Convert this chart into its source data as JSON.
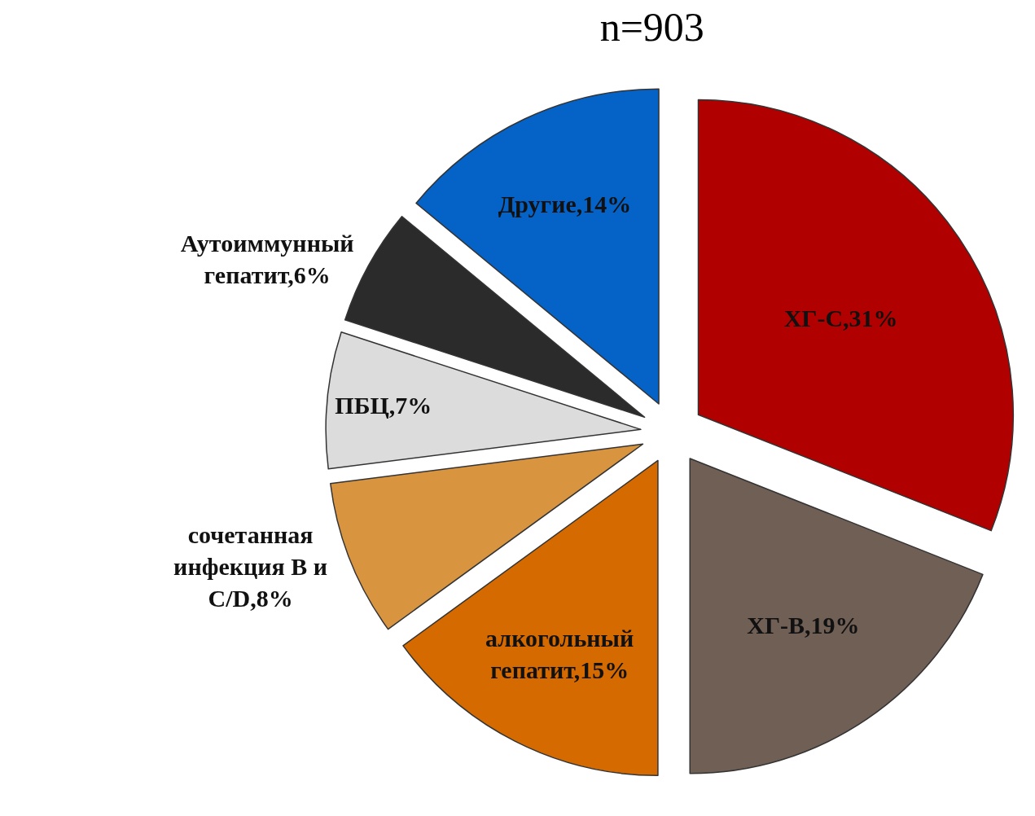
{
  "chart_data": {
    "type": "pie",
    "title": "n=903",
    "categories": [
      "ХГ-С,31%",
      "ХГ-В,19%",
      "алкогольный гепатит,15%",
      "сочетанная инфекция В и С/D,8%",
      "ПБЦ,7%",
      "Аутоиммунный гепатит,6%",
      "Другие,14%"
    ],
    "values": [
      31,
      19,
      15,
      8,
      7,
      6,
      14
    ],
    "colors": [
      "#b00000",
      "#705f55",
      "#d46a00",
      "#d99440",
      "#dcdcdc",
      "#2b2b2b",
      "#0563c8"
    ]
  }
}
